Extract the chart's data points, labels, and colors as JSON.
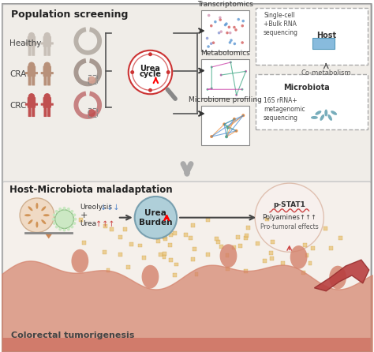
{
  "bg_top": "#f0ede8",
  "bg_bottom": "#f5f0eb",
  "title_top": "Population screening",
  "title_bottom": "Host-Microbiota maladaptation",
  "subtitle_bottom": "Colorectal tumorigenesis",
  "labels_left": [
    "Healthy",
    "CRA",
    "CRC"
  ],
  "colors_human": [
    "#c8c0b8",
    "#b8917a",
    "#c05050"
  ],
  "colors_colon": [
    "#b0a8a0",
    "#9a8a82",
    "#c07070"
  ],
  "omics": [
    "Transcriptomics",
    "Metabolomics",
    "Microbiome profiling"
  ],
  "host_label": "Host",
  "cometab_label": "Co-metabolism",
  "microbiota_label": "Microbiota",
  "seq_label": "Single-cell\n+Bulk RNA\nsequencing",
  "seq16_label": "16S rRNA+\nmetagenomic\nsequencing",
  "urea_circle_color": "#cc3333",
  "salmon_color": "#d4816a",
  "teal_color": "#6aacb8",
  "orange_dot_color": "#e8c070"
}
